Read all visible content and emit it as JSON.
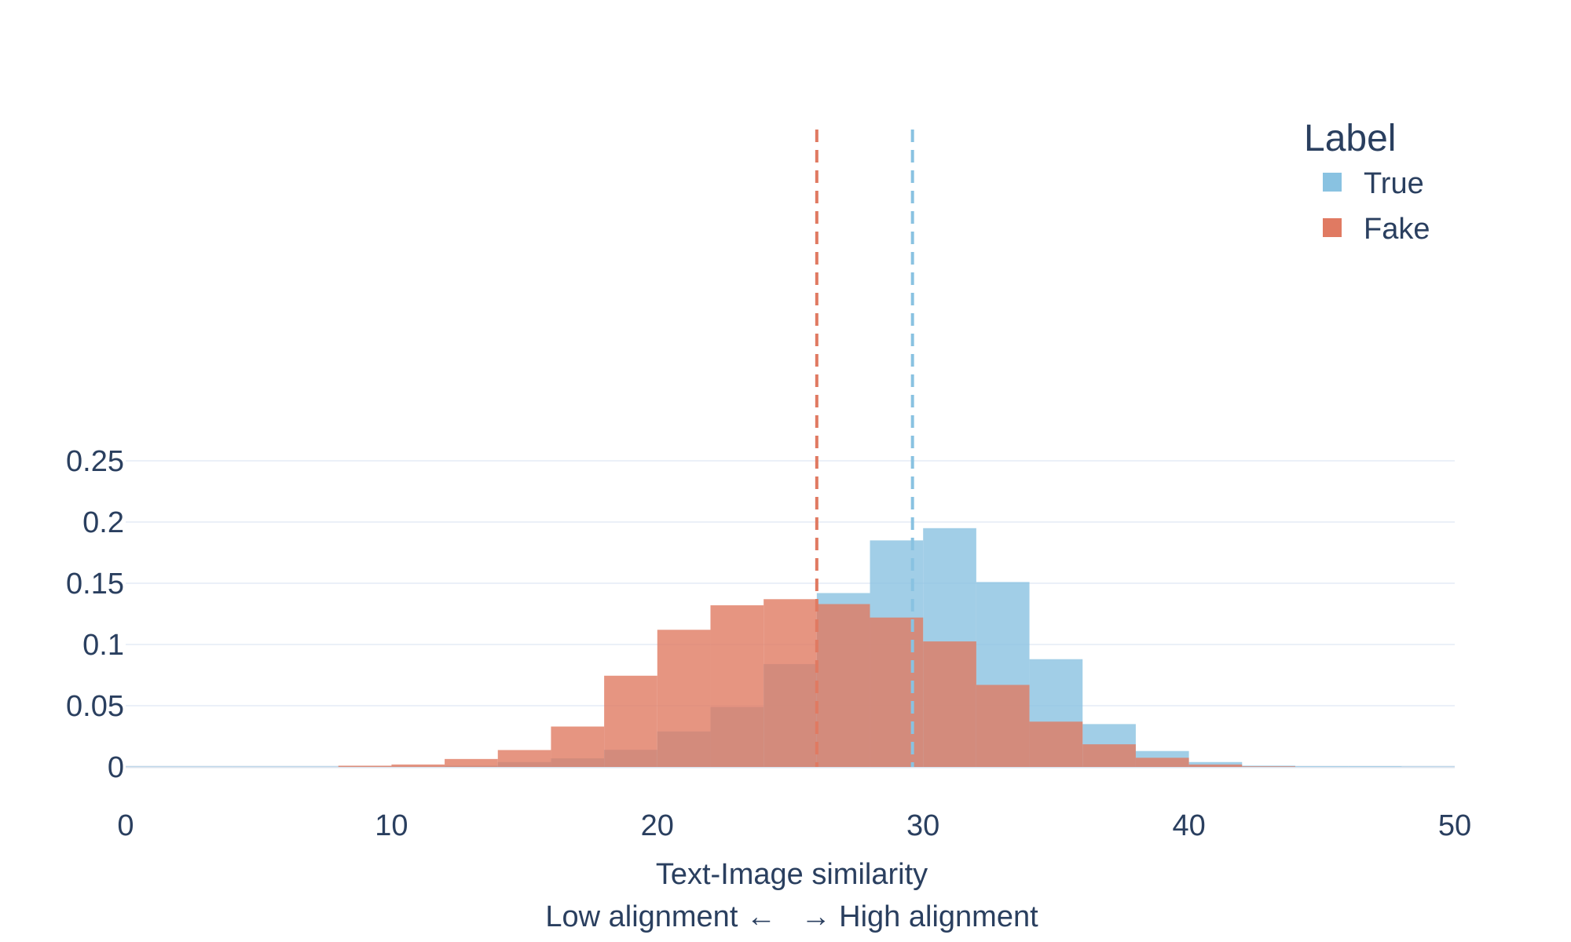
{
  "chart_data": {
    "type": "bar",
    "title": "",
    "xlabel_line1": "Text-Image similarity",
    "xlabel_line2": "Low alignment ←   → High alignment",
    "ylabel": "",
    "xlim": [
      0,
      50
    ],
    "ylim": [
      0,
      0.26
    ],
    "x_ticks": [
      0,
      10,
      20,
      30,
      40,
      50
    ],
    "x_tick_labels": [
      "0",
      "10",
      "20",
      "30",
      "40",
      "50"
    ],
    "y_ticks": [
      0,
      0.05,
      0.1,
      0.15,
      0.2,
      0.25
    ],
    "y_tick_labels": [
      "0",
      "0.05",
      "0.1",
      "0.15",
      "0.2",
      "0.25"
    ],
    "grid": true,
    "legend": {
      "title": "Label",
      "position": "top-right",
      "entries": [
        {
          "name": "True",
          "color": "#89c2e1"
        },
        {
          "name": "Fake",
          "color": "#e07a62"
        }
      ]
    },
    "bin_width": 2,
    "bin_starts": [
      0,
      2,
      4,
      6,
      8,
      10,
      12,
      14,
      16,
      18,
      20,
      22,
      24,
      26,
      28,
      30,
      32,
      34,
      36,
      38,
      40,
      42,
      44,
      46,
      48
    ],
    "series": [
      {
        "name": "True",
        "color": "#89c2e1",
        "opacity": 0.8,
        "values": [
          0.0003,
          0.0003,
          0.0003,
          0.0003,
          0.0003,
          0.0003,
          0.001,
          0.004,
          0.007,
          0.014,
          0.029,
          0.049,
          0.084,
          0.142,
          0.185,
          0.195,
          0.151,
          0.088,
          0.035,
          0.013,
          0.004,
          0.001,
          0.0005,
          0.0005,
          0.0003
        ]
      },
      {
        "name": "Fake",
        "color": "#e07a62",
        "opacity": 0.8,
        "values": [
          0,
          0,
          0,
          0,
          0.001,
          0.002,
          0.0065,
          0.0138,
          0.033,
          0.0745,
          0.112,
          0.132,
          0.137,
          0.133,
          0.122,
          0.1025,
          0.067,
          0.037,
          0.0185,
          0.0075,
          0.002,
          0.0005,
          0,
          0,
          0
        ]
      }
    ],
    "mean_lines": [
      {
        "series": "Fake",
        "x": 26.0,
        "color": "#e07a62"
      },
      {
        "series": "True",
        "x": 29.6,
        "color": "#89c2e1"
      }
    ]
  }
}
